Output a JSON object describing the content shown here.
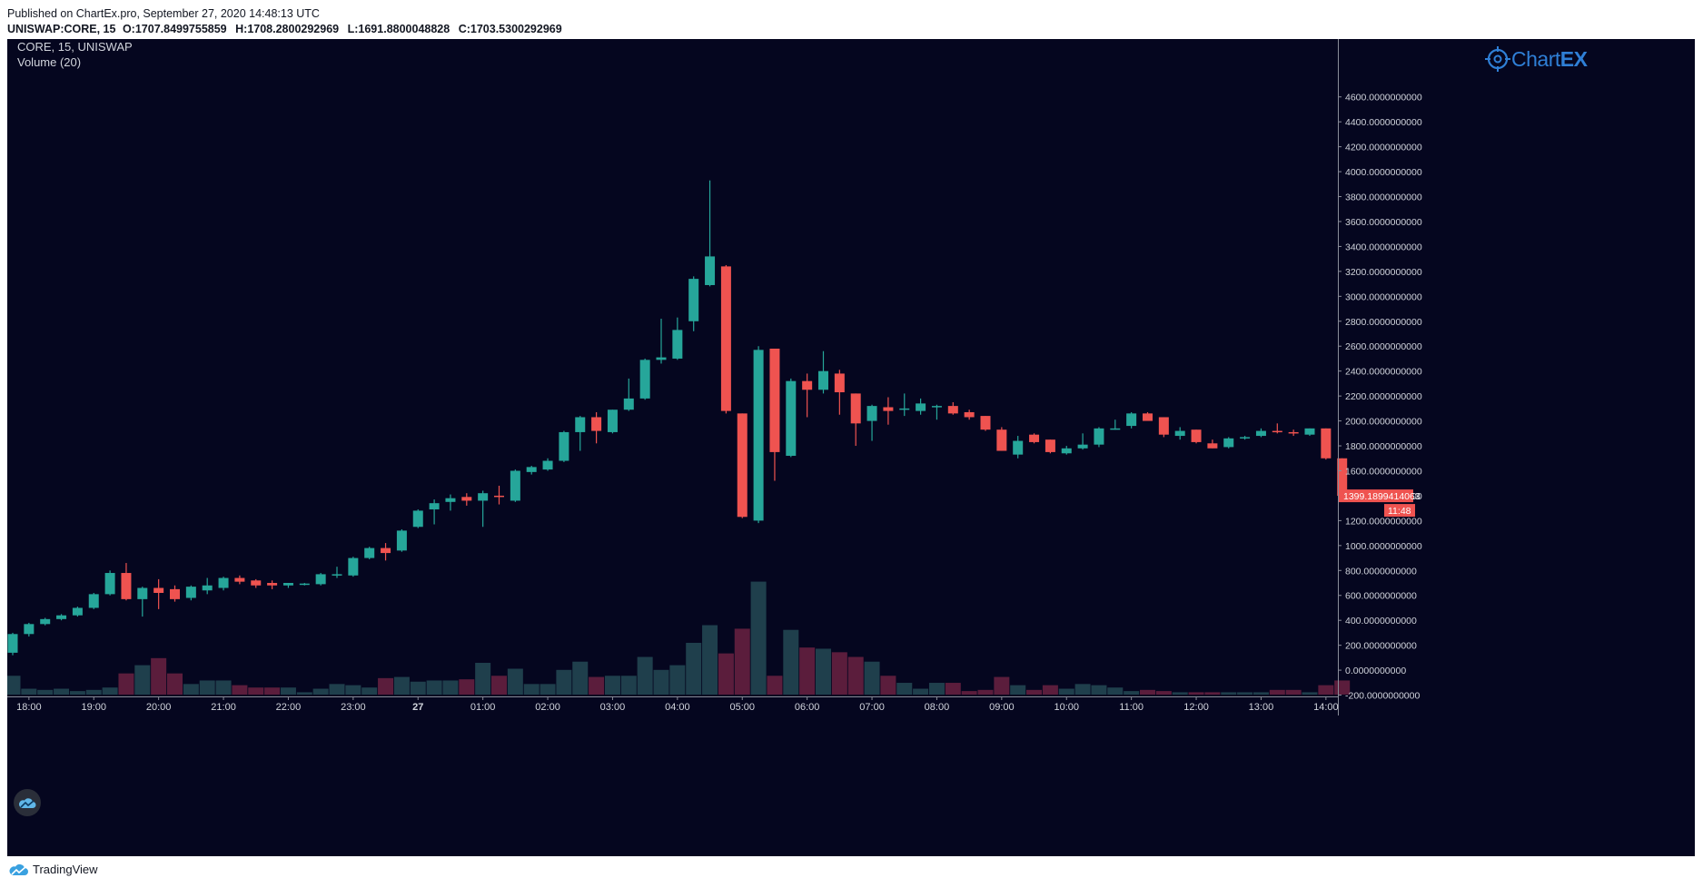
{
  "header": {
    "published": "Published on ChartEx.pro, September 27, 2020 14:48:13 UTC",
    "symbol_line": "UNISWAP:CORE, 15",
    "open": "O:1707.8499755859",
    "high": "H:1708.2800292969",
    "low": "L:1691.8800048828",
    "close": "C:1703.5300292969"
  },
  "legend": {
    "main": "CORE, 15, UNISWAP",
    "volume": "Volume (20)"
  },
  "logo": {
    "prefix": "Chart",
    "suffix": "EX"
  },
  "footer": {
    "brand": "TradingView"
  },
  "colors": {
    "background": "#05061f",
    "up": "#26a69a",
    "down": "#ef5350",
    "volume_up": "#1f3f4c",
    "volume_down": "#5b1d3c",
    "axis_text": "#d1d4dc",
    "logo": "#2f7fd6"
  },
  "chart_data": {
    "type": "candlestick",
    "ylim": [
      -400,
      4700
    ],
    "yticks": [
      -200,
      0,
      200,
      400,
      600,
      800,
      1000,
      1200,
      1400,
      1600,
      1800,
      2000,
      2200,
      2400,
      2600,
      2800,
      3000,
      3200,
      3400,
      3600,
      3800,
      4000,
      4200,
      4400,
      4600
    ],
    "ytick_labels": [
      "-200.0000000000",
      "0.0000000000",
      "200.0000000000",
      "400.0000000000",
      "600.0000000000",
      "800.0000000000",
      "1000.0000000000",
      "1200.0000000000",
      "1400.0000000000",
      "1600.0000000000",
      "1800.0000000000",
      "2000.0000000000",
      "2200.0000000000",
      "2400.0000000000",
      "2600.0000000000",
      "2800.0000000000",
      "3000.0000000000",
      "3200.0000000000",
      "3400.0000000000",
      "3600.0000000000",
      "3800.0000000000",
      "4000.0000000000",
      "4200.0000000000",
      "4400.0000000000",
      "4600.0000000000"
    ],
    "xticks": [
      {
        "bar": 1,
        "label": "18:00"
      },
      {
        "bar": 5,
        "label": "19:00"
      },
      {
        "bar": 9,
        "label": "20:00"
      },
      {
        "bar": 13,
        "label": "21:00"
      },
      {
        "bar": 17,
        "label": "22:00"
      },
      {
        "bar": 21,
        "label": "23:00"
      },
      {
        "bar": 25,
        "label": "27"
      },
      {
        "bar": 29,
        "label": "01:00"
      },
      {
        "bar": 33,
        "label": "02:00"
      },
      {
        "bar": 37,
        "label": "03:00"
      },
      {
        "bar": 41,
        "label": "04:00"
      },
      {
        "bar": 45,
        "label": "05:00"
      },
      {
        "bar": 49,
        "label": "06:00"
      },
      {
        "bar": 53,
        "label": "07:00"
      },
      {
        "bar": 57,
        "label": "08:00"
      },
      {
        "bar": 61,
        "label": "09:00"
      },
      {
        "bar": 65,
        "label": "10:00"
      },
      {
        "bar": 69,
        "label": "11:00"
      },
      {
        "bar": 73,
        "label": "12:00"
      },
      {
        "bar": 77,
        "label": "13:00"
      },
      {
        "bar": 81,
        "label": "14:00"
      }
    ],
    "last_price_label": "1399.1899414063",
    "countdown_label": "11:48",
    "ohlc": [
      [
        140,
        300,
        120,
        290
      ],
      [
        290,
        380,
        270,
        370
      ],
      [
        370,
        420,
        360,
        410
      ],
      [
        410,
        450,
        400,
        440
      ],
      [
        440,
        510,
        430,
        500
      ],
      [
        500,
        620,
        490,
        610
      ],
      [
        610,
        800,
        600,
        780
      ],
      [
        780,
        860,
        560,
        570
      ],
      [
        570,
        670,
        430,
        660
      ],
      [
        660,
        730,
        490,
        620
      ],
      [
        650,
        680,
        550,
        570
      ],
      [
        580,
        680,
        560,
        670
      ],
      [
        640,
        740,
        610,
        680
      ],
      [
        660,
        750,
        640,
        740
      ],
      [
        740,
        760,
        690,
        710
      ],
      [
        720,
        730,
        660,
        680
      ],
      [
        700,
        720,
        650,
        680
      ],
      [
        680,
        700,
        660,
        700
      ],
      [
        690,
        700,
        680,
        695
      ],
      [
        690,
        780,
        680,
        770
      ],
      [
        760,
        830,
        740,
        770
      ],
      [
        760,
        910,
        750,
        900
      ],
      [
        900,
        990,
        890,
        980
      ],
      [
        980,
        1020,
        880,
        940
      ],
      [
        960,
        1130,
        950,
        1120
      ],
      [
        1150,
        1290,
        1140,
        1280
      ],
      [
        1290,
        1370,
        1170,
        1340
      ],
      [
        1350,
        1410,
        1280,
        1380
      ],
      [
        1390,
        1420,
        1320,
        1360
      ],
      [
        1360,
        1440,
        1150,
        1420
      ],
      [
        1400,
        1480,
        1330,
        1390
      ],
      [
        1360,
        1610,
        1350,
        1600
      ],
      [
        1590,
        1640,
        1570,
        1630
      ],
      [
        1610,
        1700,
        1600,
        1680
      ],
      [
        1680,
        1920,
        1670,
        1910
      ],
      [
        1910,
        2040,
        1760,
        2030
      ],
      [
        2030,
        2070,
        1820,
        1920
      ],
      [
        1910,
        2090,
        1900,
        2090
      ],
      [
        2090,
        2340,
        2080,
        2180
      ],
      [
        2180,
        2500,
        2170,
        2490
      ],
      [
        2490,
        2820,
        2460,
        2510
      ],
      [
        2500,
        2830,
        2490,
        2730
      ],
      [
        2800,
        3160,
        2720,
        3140
      ],
      [
        3090,
        3930,
        3080,
        3320
      ],
      [
        3240,
        3250,
        2060,
        2080
      ],
      [
        2060,
        2060,
        1220,
        1230
      ],
      [
        1200,
        2600,
        1180,
        2570
      ],
      [
        2580,
        2580,
        1520,
        1750
      ],
      [
        1720,
        2340,
        1710,
        2320
      ],
      [
        2320,
        2380,
        2030,
        2250
      ],
      [
        2250,
        2560,
        2220,
        2400
      ],
      [
        2380,
        2410,
        2050,
        2230
      ],
      [
        2220,
        2220,
        1800,
        1980
      ],
      [
        2000,
        2130,
        1840,
        2120
      ],
      [
        2110,
        2190,
        1970,
        2080
      ],
      [
        2090,
        2220,
        2040,
        2100
      ],
      [
        2080,
        2180,
        2050,
        2140
      ],
      [
        2120,
        2130,
        2010,
        2120
      ],
      [
        2120,
        2150,
        2050,
        2060
      ],
      [
        2070,
        2090,
        2010,
        2030
      ],
      [
        2040,
        2040,
        1920,
        1930
      ],
      [
        1930,
        1950,
        1760,
        1760
      ],
      [
        1730,
        1880,
        1700,
        1840
      ],
      [
        1890,
        1900,
        1820,
        1830
      ],
      [
        1850,
        1850,
        1740,
        1750
      ],
      [
        1740,
        1800,
        1730,
        1780
      ],
      [
        1780,
        1900,
        1770,
        1810
      ],
      [
        1810,
        1950,
        1790,
        1940
      ],
      [
        1940,
        2010,
        1930,
        1940
      ],
      [
        1960,
        2070,
        1940,
        2060
      ],
      [
        2060,
        2070,
        2010,
        2000
      ],
      [
        2030,
        2030,
        1870,
        1890
      ],
      [
        1880,
        1950,
        1850,
        1920
      ],
      [
        1930,
        1930,
        1820,
        1830
      ],
      [
        1820,
        1850,
        1780,
        1780
      ],
      [
        1790,
        1870,
        1780,
        1860
      ],
      [
        1860,
        1880,
        1850,
        1870
      ],
      [
        1880,
        1940,
        1870,
        1920
      ],
      [
        1920,
        1980,
        1900,
        1910
      ],
      [
        1910,
        1930,
        1880,
        1900
      ],
      [
        1890,
        1940,
        1880,
        1940
      ],
      [
        1940,
        1940,
        1690,
        1700
      ],
      [
        1700,
        1700,
        1390,
        1399
      ]
    ],
    "volume_scale": {
      "min": 0,
      "max": 12.5
    },
    "volume": [
      1.6,
      0.5,
      0.4,
      0.5,
      0.3,
      0.4,
      0.6,
      1.8,
      2.5,
      3.1,
      1.8,
      0.9,
      1.2,
      1.2,
      0.8,
      0.6,
      0.6,
      0.6,
      0.2,
      0.5,
      0.9,
      0.8,
      0.6,
      1.4,
      1.5,
      1.1,
      1.2,
      1.2,
      1.3,
      2.7,
      1.6,
      2.2,
      0.9,
      0.9,
      2.1,
      2.8,
      1.5,
      1.6,
      1.6,
      3.2,
      2.1,
      2.5,
      4.4,
      5.9,
      3.5,
      5.6,
      9.6,
      1.6,
      5.5,
      4.0,
      3.9,
      3.6,
      3.2,
      2.8,
      1.6,
      1.0,
      0.5,
      1.0,
      1.0,
      0.3,
      0.4,
      1.5,
      0.8,
      0.4,
      0.8,
      0.5,
      0.9,
      0.8,
      0.6,
      0.3,
      0.4,
      0.3,
      0.2,
      0.2,
      0.2,
      0.2,
      0.2,
      0.2,
      0.4,
      0.4,
      0.2,
      0.8,
      1.2
    ]
  }
}
